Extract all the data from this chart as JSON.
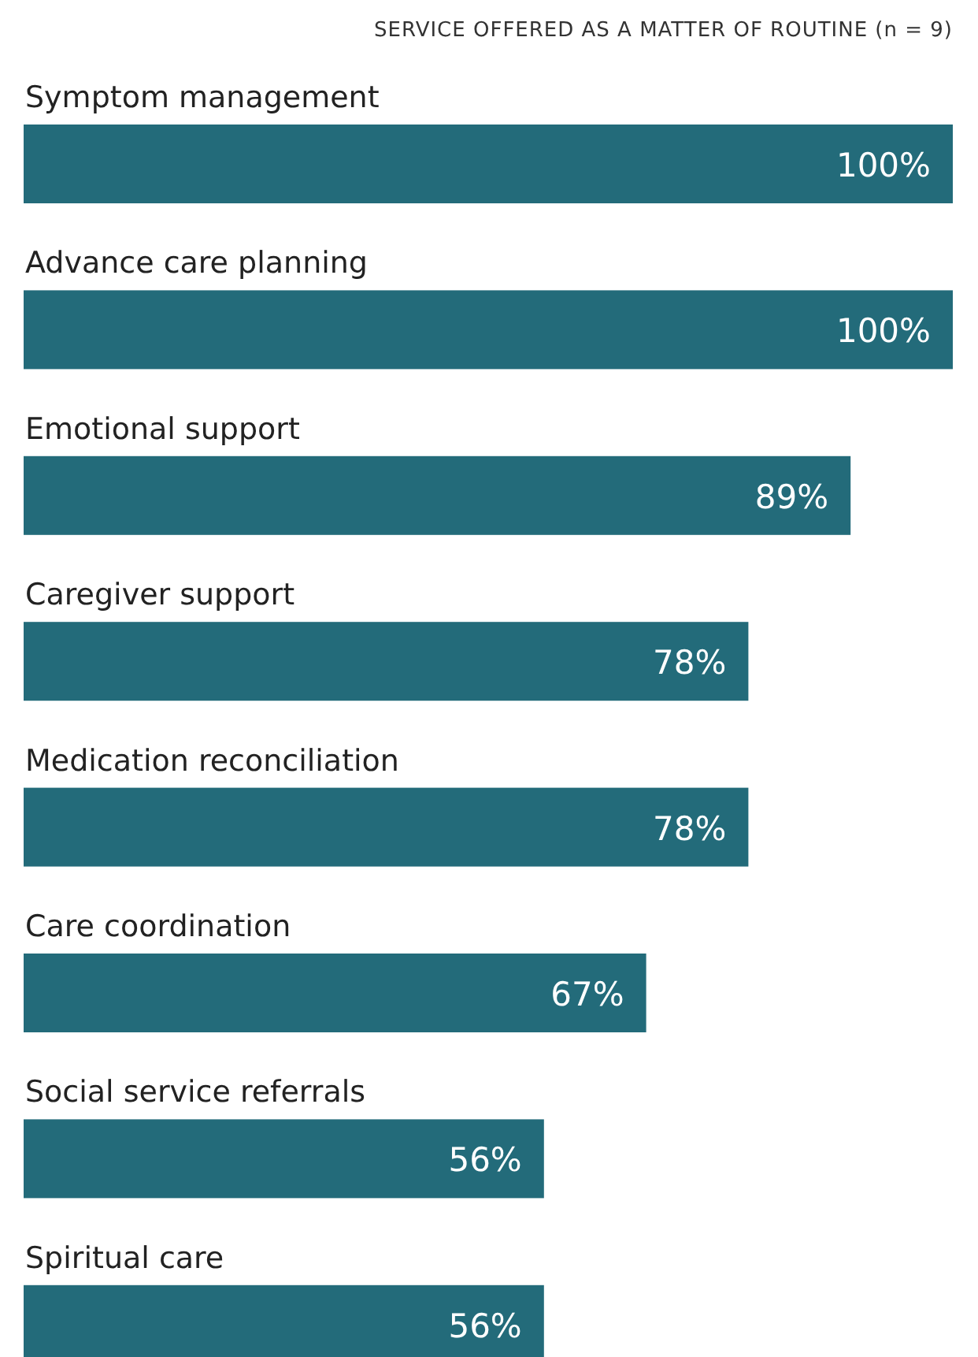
{
  "chart_data": {
    "type": "bar",
    "orientation": "horizontal",
    "title": "SERVICE OFFERED AS A MATTER OF ROUTINE (n = 9)",
    "categories": [
      "Symptom management",
      "Advance care planning",
      "Emotional support",
      "Caregiver support",
      "Medication reconciliation",
      "Care coordination",
      "Social service referrals",
      "Spiritual care"
    ],
    "values": [
      100,
      100,
      89,
      78,
      78,
      67,
      56,
      56
    ],
    "value_labels": [
      "100%",
      "100%",
      "89%",
      "78%",
      "78%",
      "67%",
      "56%",
      "56%"
    ],
    "color": "#236b7a"
  }
}
